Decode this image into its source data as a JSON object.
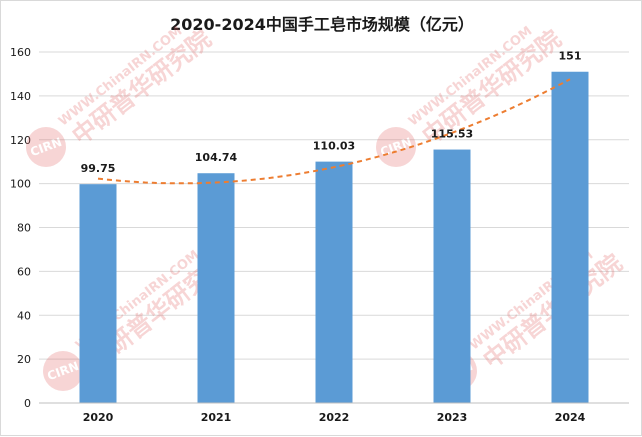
{
  "chart_data": {
    "type": "bar",
    "title": "2020-2024中国手工皂市场规模（亿元）",
    "categories": [
      "2020",
      "2021",
      "2022",
      "2023",
      "2024"
    ],
    "values": [
      99.75,
      104.74,
      110.03,
      115.53,
      151
    ],
    "data_labels": [
      "99.75",
      "104.74",
      "110.03",
      "115.53",
      "151"
    ],
    "ylim": [
      0,
      160
    ],
    "yticks": [
      0,
      20,
      40,
      60,
      80,
      100,
      120,
      140,
      160
    ],
    "grid": true,
    "bar_color": "#5b9bd5",
    "trendline": {
      "type": "polynomial",
      "color": "#ed7d31",
      "style": "dashed"
    }
  },
  "watermark": {
    "url_text": "WWW.ChinaIRN.COM",
    "brand_text": "中研普华研究院",
    "logo_text": "CIRN",
    "color": "#e06a6a",
    "opacity": 0.28
  }
}
